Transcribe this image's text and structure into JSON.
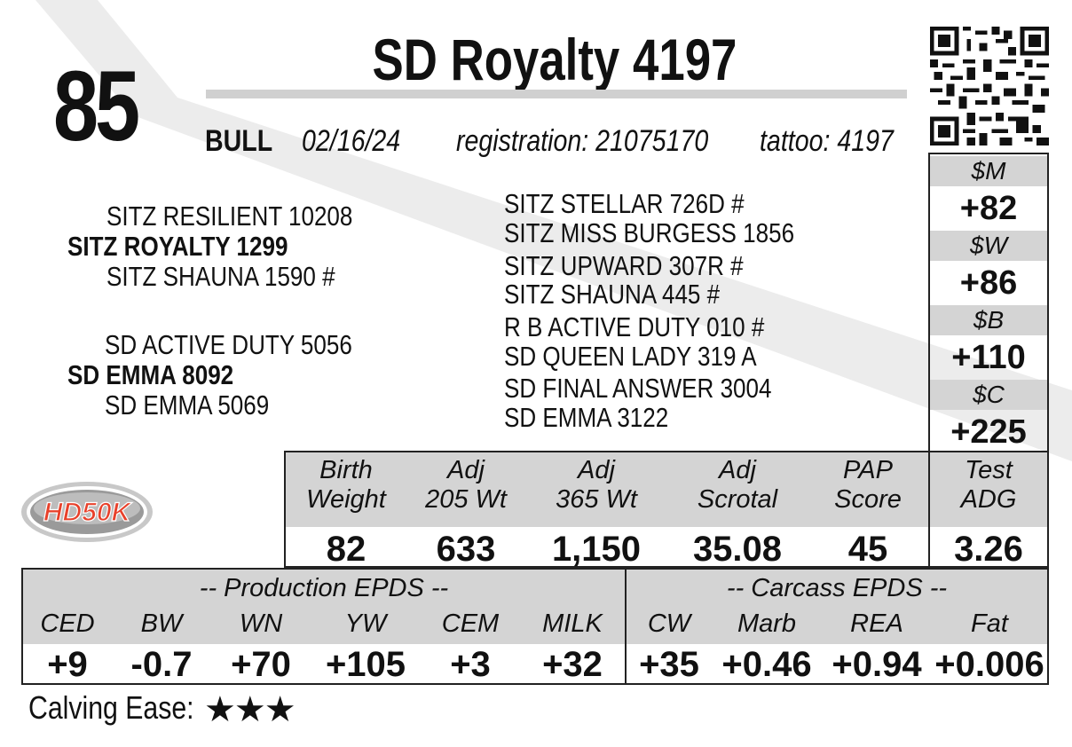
{
  "lot_number": "85",
  "name": "SD Royalty 4197",
  "sex": "BULL",
  "birth_date": "02/16/24",
  "registration": "registration:  21075170",
  "tattoo": "tattoo: 4197",
  "pedigree": {
    "sire_sire": "SITZ RESILIENT 10208",
    "sire": "SITZ ROYALTY 1299",
    "sire_dam": "SITZ SHAUNA 1590 #",
    "dam_sire": "SD ACTIVE DUTY 5056",
    "dam": "SD EMMA 8092",
    "dam_dam": "SD EMMA 5069",
    "right": [
      "SITZ STELLAR 726D #",
      "SITZ MISS BURGESS 1856",
      "SITZ UPWARD 307R #",
      "SITZ SHAUNA 445 #",
      "R B ACTIVE DUTY 010 #",
      "SD QUEEN LADY 319 A",
      "SD FINAL ANSWER 3004",
      "SD EMMA 3122"
    ]
  },
  "indexes": [
    {
      "label": "$M",
      "value": "+82"
    },
    {
      "label": "$W",
      "value": "+86"
    },
    {
      "label": "$B",
      "value": "+110"
    },
    {
      "label": "$C",
      "value": "+225"
    }
  ],
  "logo_text": "HD50K",
  "traits": [
    {
      "label1": "Birth",
      "label2": "Weight",
      "value": "82"
    },
    {
      "label1": "Adj",
      "label2": "205 Wt",
      "value": "633"
    },
    {
      "label1": "Adj",
      "label2": "365 Wt",
      "value": "1,150"
    },
    {
      "label1": "Adj",
      "label2": "Scrotal",
      "value": "35.08"
    },
    {
      "label1": "PAP",
      "label2": "Score",
      "value": "45"
    },
    {
      "label1": "Test",
      "label2": "ADG",
      "value": "3.26"
    }
  ],
  "production_title": "-- Production EPDS --",
  "carcass_title": "-- Carcass EPDS --",
  "production_epds": [
    {
      "label": "CED",
      "value": "+9"
    },
    {
      "label": "BW",
      "value": "-0.7"
    },
    {
      "label": "WN",
      "value": "+70"
    },
    {
      "label": "YW",
      "value": "+105"
    },
    {
      "label": "CEM",
      "value": "+3"
    },
    {
      "label": "MILK",
      "value": "+32"
    }
  ],
  "carcass_epds": [
    {
      "label": "CW",
      "value": "+35"
    },
    {
      "label": "Marb",
      "value": "+0.46"
    },
    {
      "label": "REA",
      "value": "+0.94"
    },
    {
      "label": "Fat",
      "value": "+0.006"
    }
  ],
  "calving_ease_label": "Calving Ease:",
  "calving_ease_stars": 3,
  "calving_ease_glyphs": "★★★"
}
